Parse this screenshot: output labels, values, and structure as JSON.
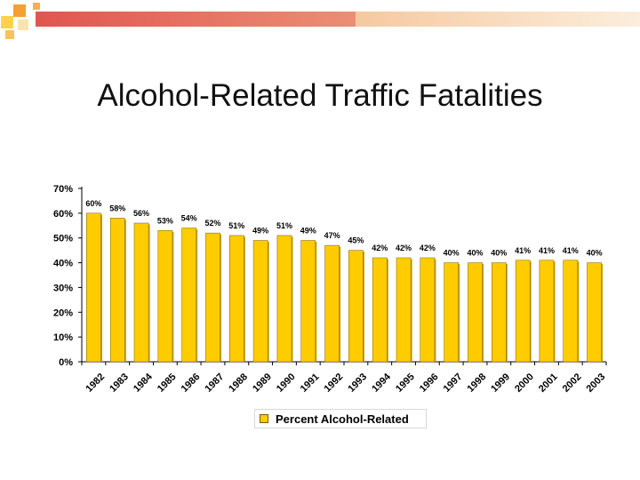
{
  "slide": {
    "title": "Alcohol-Related Traffic Fatalities"
  },
  "colors": {
    "bar_fill": "#ffcc00",
    "bar_edge": "#7a5a00",
    "header_red": "#e0564e",
    "header_peach": "#f5d2a8",
    "header_orange": "#f4a032",
    "header_yellow": "#ffd24a"
  },
  "chart_data": {
    "type": "bar",
    "categories": [
      "1982",
      "1983",
      "1984",
      "1985",
      "1986",
      "1987",
      "1988",
      "1989",
      "1990",
      "1991",
      "1992",
      "1993",
      "1994",
      "1995",
      "1996",
      "1997",
      "1998",
      "1999",
      "2000",
      "2001",
      "2002",
      "2003"
    ],
    "series": [
      {
        "name": "Percent Alcohol-Related",
        "values": [
          60,
          58,
          56,
          53,
          54,
          52,
          51,
          49,
          51,
          49,
          47,
          45,
          42,
          42,
          42,
          40,
          40,
          40,
          41,
          41,
          41,
          40
        ],
        "labels": [
          "60%",
          "58%",
          "56%",
          "53%",
          "54%",
          "52%",
          "51%",
          "49%",
          "51%",
          "49%",
          "47%",
          "45%",
          "42%",
          "42%",
          "42%",
          "40%",
          "40%",
          "40%",
          "41%",
          "41%",
          "41%",
          "40%"
        ]
      }
    ],
    "ylim": [
      0,
      70
    ],
    "yticks": [
      "0%",
      "10%",
      "20%",
      "30%",
      "40%",
      "50%",
      "60%",
      "70%"
    ],
    "ytick_values": [
      0,
      10,
      20,
      30,
      40,
      50,
      60,
      70
    ],
    "xlabel": "",
    "ylabel": "",
    "grid": false,
    "legend_position": "bottom"
  }
}
